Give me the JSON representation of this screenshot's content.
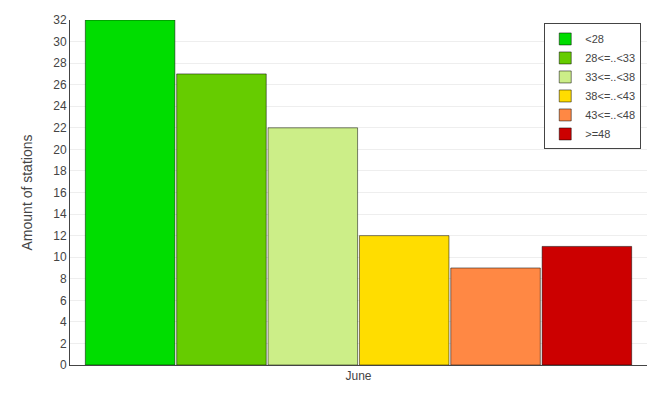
{
  "chart_data": {
    "type": "bar",
    "ylabel": "Amount of stations",
    "categories": [
      "June"
    ],
    "series": [
      {
        "name": "<28",
        "color": "#00dd00",
        "values": [
          32
        ]
      },
      {
        "name": "28<=..<33",
        "color": "#66cc00",
        "values": [
          27
        ]
      },
      {
        "name": "33<=..<38",
        "color": "#ccee88",
        "values": [
          22
        ]
      },
      {
        "name": "38<=..<43",
        "color": "#ffdd00",
        "values": [
          12
        ]
      },
      {
        "name": "43<=..<48",
        "color": "#ff8844",
        "values": [
          9
        ]
      },
      {
        "name": ">=48",
        "color": "#cc0000",
        "values": [
          11
        ]
      }
    ],
    "ylim": [
      0,
      32
    ],
    "yticks": [
      0,
      2,
      4,
      6,
      8,
      10,
      12,
      14,
      16,
      18,
      20,
      22,
      24,
      26,
      28,
      30,
      32
    ],
    "grid": true,
    "legend": "top-right"
  }
}
